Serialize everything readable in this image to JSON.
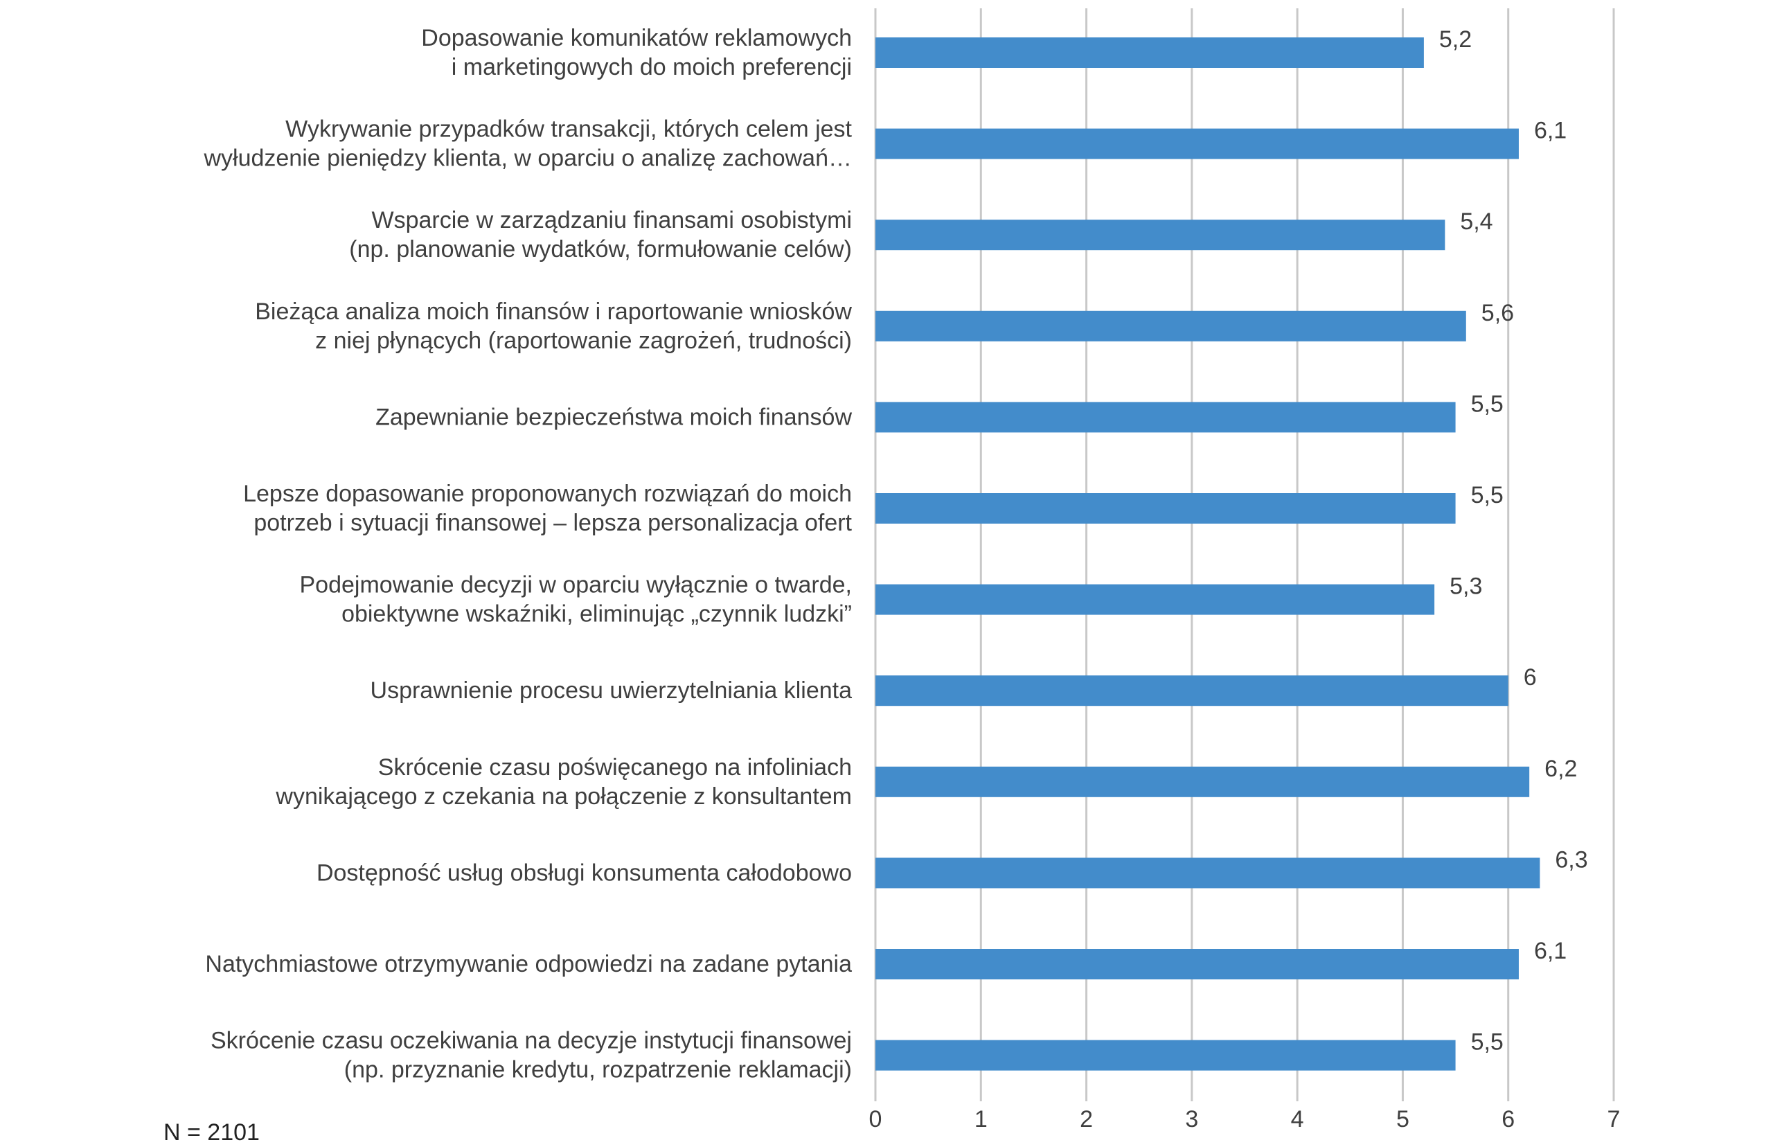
{
  "chart_data": {
    "type": "bar",
    "orientation": "horizontal",
    "categories": [
      [
        "Dopasowanie komunikatów reklamowych",
        "i marketingowych do moich preferencji"
      ],
      [
        "Wykrywanie przypadków transakcji, których celem jest",
        "wyłudzenie pieniędzy klienta, w oparciu o analizę zachowań…"
      ],
      [
        "Wsparcie w zarządzaniu finansami osobistymi",
        "(np. planowanie wydatków, formułowanie celów)"
      ],
      [
        "Bieżąca analiza moich finansów i raportowanie wniosków",
        "z niej płynących (raportowanie zagrożeń, trudności)"
      ],
      [
        "Zapewnianie bezpieczeństwa moich finansów"
      ],
      [
        "Lepsze dopasowanie proponowanych rozwiązań do moich",
        "potrzeb i sytuacji finansowej – lepsza personalizacja ofert"
      ],
      [
        "Podejmowanie decyzji w oparciu wyłącznie o twarde,",
        "obiektywne wskaźniki, eliminując „czynnik ludzki”"
      ],
      [
        "Usprawnienie procesu uwierzytelniania klienta"
      ],
      [
        "Skrócenie czasu poświęcanego na infoliniach",
        "wynikającego z czekania na połączenie z konsultantem"
      ],
      [
        "Dostępność usług obsługi konsumenta całodobowo"
      ],
      [
        "Natychmiastowe otrzymywanie odpowiedzi na zadane pytania"
      ],
      [
        "Skrócenie czasu oczekiwania na decyzje instytucji finansowej",
        "(np. przyznanie kredytu, rozpatrzenie reklamacji)"
      ]
    ],
    "values": [
      5.2,
      6.1,
      5.4,
      5.6,
      5.5,
      5.5,
      5.3,
      6.0,
      6.2,
      6.3,
      6.1,
      5.5
    ],
    "value_labels": [
      "5,2",
      "6,1",
      "5,4",
      "5,6",
      "5,5",
      "5,5",
      "5,3",
      "6",
      "6,2",
      "6,3",
      "6,1",
      "5,5"
    ],
    "xlim": [
      0,
      7
    ],
    "xticks": [
      "0",
      "1",
      "2",
      "3",
      "4",
      "5",
      "6",
      "7"
    ],
    "grid": "vertical",
    "colors": {
      "bar": "#438ccb",
      "grid": "#c8c8c8",
      "text": "#3f3f3f"
    }
  },
  "footer": {
    "note": "N = 2101"
  }
}
